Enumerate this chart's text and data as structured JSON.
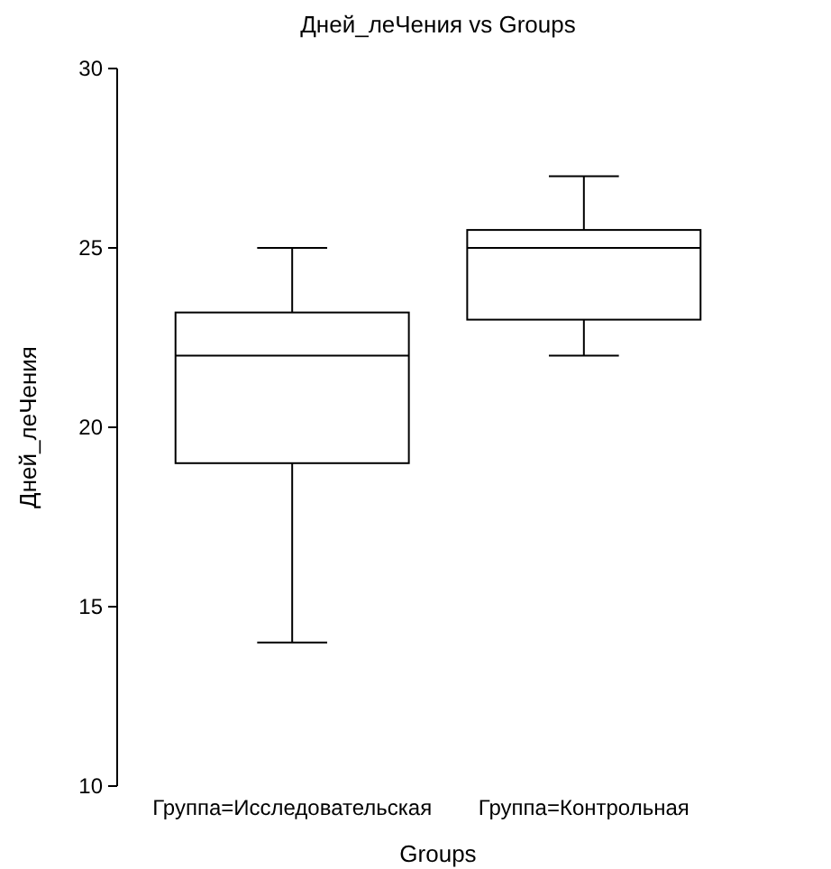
{
  "chart_data": {
    "type": "box",
    "title": "Дней_леЧения vs Groups",
    "xlabel": "Groups",
    "ylabel": "Дней_леЧения",
    "categories": [
      "Группа=Исследовательская",
      "Группа=Контрольная"
    ],
    "series": [
      {
        "color": "#000000",
        "boxes": [
          {
            "low": 14,
            "q1": 19,
            "median": 22,
            "q3": 23.2,
            "high": 25
          },
          {
            "low": 22,
            "q1": 23,
            "median": 25,
            "q3": 25.5,
            "high": 27
          }
        ]
      }
    ],
    "ylim": [
      10,
      30
    ],
    "yticks": [
      10,
      15,
      20,
      25,
      30
    ],
    "grid": false
  }
}
